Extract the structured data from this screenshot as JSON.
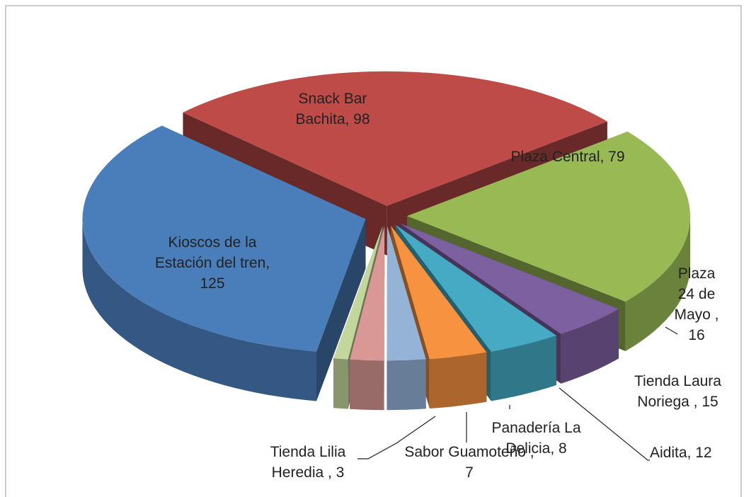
{
  "chart_data": {
    "type": "pie",
    "values": [
      125,
      98,
      79,
      16,
      15,
      12,
      8,
      7,
      3
    ],
    "value_labels": [
      "Kioscos de la Estación del tren, 125",
      "Snack Bar Bachita, 98",
      "Plaza Central, 79",
      "Plaza 24 de Mayo , 16",
      "Tienda Laura Noriega , 15",
      "Aidita, 12",
      "Panadería La Delicia, 8",
      "Sabor Guamoteño , 7",
      "Tienda Lilia Heredia , 3"
    ],
    "colors": [
      "#4a7ebb",
      "#be4b48",
      "#98b954",
      "#7d60a0",
      "#46aac5",
      "#f69240",
      "#95b3d7",
      "#d99795",
      "#c3d69b"
    ]
  }
}
